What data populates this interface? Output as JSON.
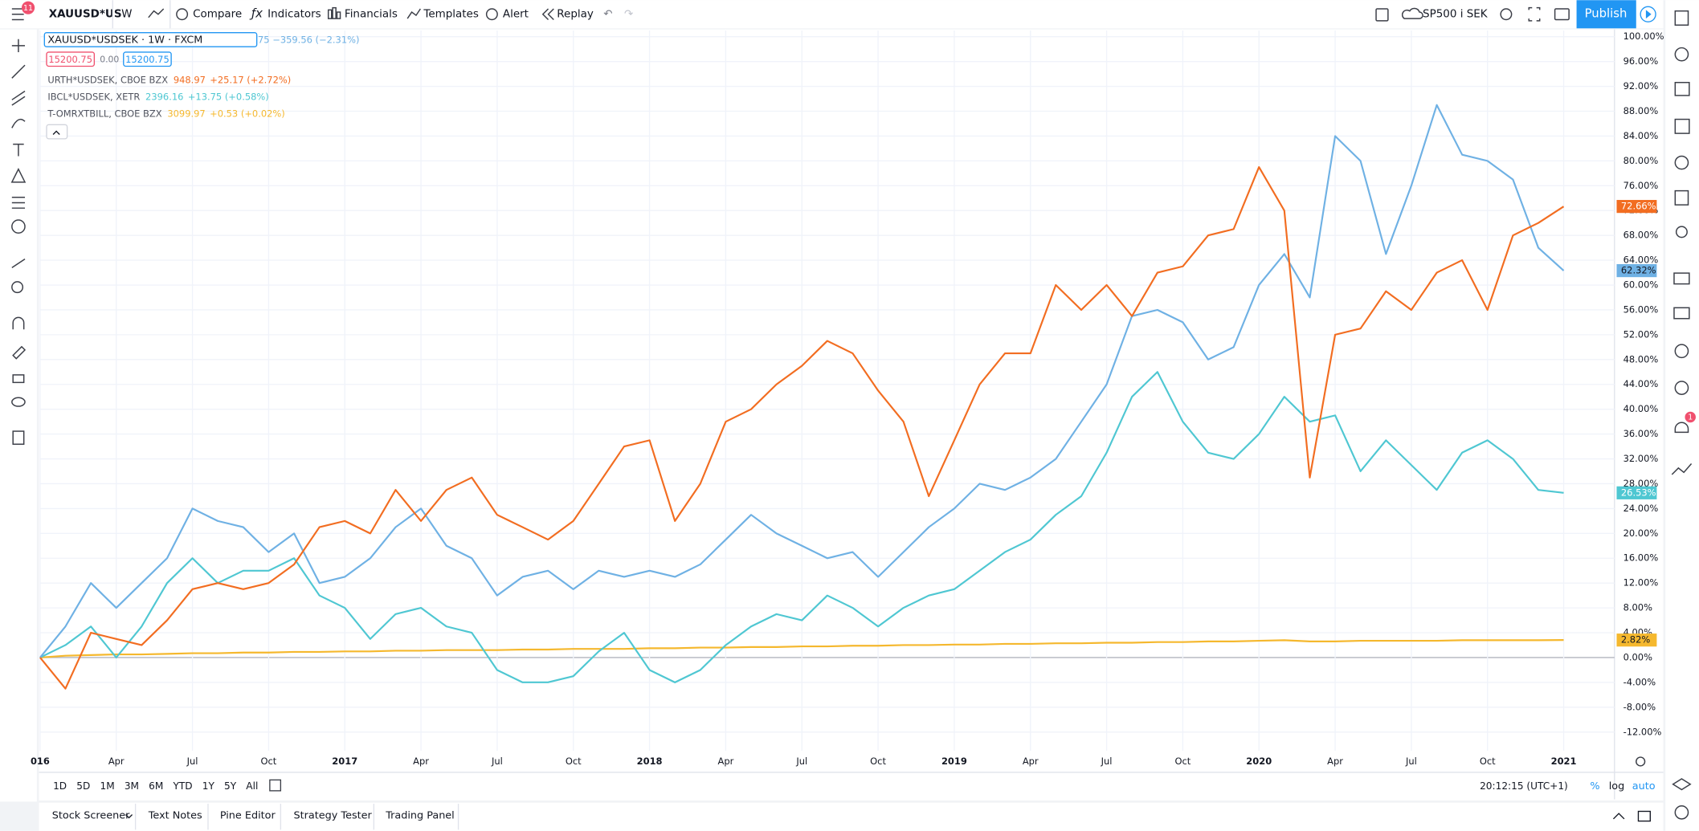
{
  "toolbar": {
    "symbol": "XAUUSD*US",
    "interval": "W",
    "badge": "11",
    "buttons": [
      "Compare",
      "Indicators",
      "Financials",
      "Templates",
      "Alert",
      "Replay"
    ],
    "layout": "SP500 i SEK",
    "publish": "Publish"
  },
  "chart_data": {
    "type": "line",
    "x": [
      "2016-01",
      "2016-02",
      "2016-03",
      "2016-04",
      "2016-05",
      "2016-06",
      "2016-07",
      "2016-08",
      "2016-09",
      "2016-10",
      "2016-11",
      "2016-12",
      "2017-01",
      "2017-02",
      "2017-03",
      "2017-04",
      "2017-05",
      "2017-06",
      "2017-07",
      "2017-08",
      "2017-09",
      "2017-10",
      "2017-11",
      "2017-12",
      "2018-01",
      "2018-02",
      "2018-03",
      "2018-04",
      "2018-05",
      "2018-06",
      "2018-07",
      "2018-08",
      "2018-09",
      "2018-10",
      "2018-11",
      "2018-12",
      "2019-01",
      "2019-02",
      "2019-03",
      "2019-04",
      "2019-05",
      "2019-06",
      "2019-07",
      "2019-08",
      "2019-09",
      "2019-10",
      "2019-11",
      "2019-12",
      "2020-01",
      "2020-02",
      "2020-03",
      "2020-04",
      "2020-05",
      "2020-06",
      "2020-07",
      "2020-08",
      "2020-09",
      "2020-10",
      "2020-11",
      "2020-12",
      "2021-01"
    ],
    "xlim": [
      "2016-01",
      "2021-03"
    ],
    "xticks": [
      {
        "value": "2016-01",
        "label": "016"
      },
      {
        "value": "2016-04",
        "label": "Apr"
      },
      {
        "value": "2016-07",
        "label": "Jul"
      },
      {
        "value": "2016-10",
        "label": "Oct"
      },
      {
        "value": "2017-01",
        "label": "2017"
      },
      {
        "value": "2017-04",
        "label": "Apr"
      },
      {
        "value": "2017-07",
        "label": "Jul"
      },
      {
        "value": "2017-10",
        "label": "Oct"
      },
      {
        "value": "2018-01",
        "label": "2018"
      },
      {
        "value": "2018-04",
        "label": "Apr"
      },
      {
        "value": "2018-07",
        "label": "Jul"
      },
      {
        "value": "2018-10",
        "label": "Oct"
      },
      {
        "value": "2019-01",
        "label": "2019"
      },
      {
        "value": "2019-04",
        "label": "Apr"
      },
      {
        "value": "2019-07",
        "label": "Jul"
      },
      {
        "value": "2019-10",
        "label": "Oct"
      },
      {
        "value": "2020-01",
        "label": "2020"
      },
      {
        "value": "2020-04",
        "label": "Apr"
      },
      {
        "value": "2020-07",
        "label": "Jul"
      },
      {
        "value": "2020-10",
        "label": "Oct"
      },
      {
        "value": "2021-01",
        "label": "2021"
      }
    ],
    "ylim": [
      -15,
      101
    ],
    "yticks": [
      {
        "value": -12,
        "label": "-12.00%"
      },
      {
        "value": -8,
        "label": "-8.00%"
      },
      {
        "value": -4,
        "label": "-4.00%"
      },
      {
        "value": 0,
        "label": "0.00%"
      },
      {
        "value": 4,
        "label": "4.00%"
      },
      {
        "value": 8,
        "label": "8.00%"
      },
      {
        "value": 12,
        "label": "12.00%"
      },
      {
        "value": 16,
        "label": "16.00%"
      },
      {
        "value": 20,
        "label": "20.00%"
      },
      {
        "value": 24,
        "label": "24.00%"
      },
      {
        "value": 28,
        "label": "28.00%"
      },
      {
        "value": 32,
        "label": "32.00%"
      },
      {
        "value": 36,
        "label": "36.00%"
      },
      {
        "value": 40,
        "label": "40.00%"
      },
      {
        "value": 44,
        "label": "44.00%"
      },
      {
        "value": 48,
        "label": "48.00%"
      },
      {
        "value": 52,
        "label": "52.00%"
      },
      {
        "value": 56,
        "label": "56.00%"
      },
      {
        "value": 60,
        "label": "60.00%"
      },
      {
        "value": 64,
        "label": "64.00%"
      },
      {
        "value": 68,
        "label": "68.00%"
      },
      {
        "value": 72,
        "label": "72.00%"
      },
      {
        "value": 76,
        "label": "76.00%"
      },
      {
        "value": 80,
        "label": "80.00%"
      },
      {
        "value": 84,
        "label": "84.00%"
      },
      {
        "value": 88,
        "label": "88.00%"
      },
      {
        "value": 92,
        "label": "92.00%"
      },
      {
        "value": 96,
        "label": "96.00%"
      },
      {
        "value": 100,
        "label": "100.00%"
      }
    ],
    "grid": true,
    "series": [
      {
        "name": "XAUUSD*USDSEK · 1W · FXCM",
        "color": "#6fb1e4",
        "change": "75 −359.56 (−2.31%)",
        "bid": "15200.75",
        "spread": "0.00",
        "ask": "15200.75",
        "values": [
          0,
          5,
          12,
          8,
          12,
          16,
          24,
          22,
          21,
          17,
          20,
          12,
          13,
          16,
          21,
          24,
          18,
          16,
          10,
          13,
          14,
          11,
          14,
          13,
          14,
          13,
          15,
          19,
          23,
          20,
          18,
          16,
          17,
          13,
          17,
          21,
          24,
          28,
          27,
          29,
          32,
          38,
          44,
          55,
          56,
          54,
          48,
          50,
          60,
          65,
          58,
          84,
          80,
          65,
          76,
          89,
          81,
          80,
          77,
          66,
          62.32
        ],
        "value_labels": [
          null,
          null,
          null,
          null,
          null,
          null,
          null,
          null,
          null,
          null,
          null,
          null,
          null,
          null,
          null,
          null,
          null,
          null,
          null,
          null,
          null,
          null,
          null,
          null,
          null,
          null,
          null,
          null,
          null,
          null,
          null,
          null,
          null,
          null,
          null,
          null,
          null,
          null,
          null,
          null,
          null,
          null,
          null,
          null,
          null,
          null,
          null,
          null,
          null,
          null,
          null,
          null,
          null,
          null,
          null,
          null,
          null,
          null,
          null,
          null,
          "62.32%"
        ]
      },
      {
        "name": "URTH*USDSEK, CBOE BZX",
        "color": "#f26d21",
        "last": "948.97",
        "change": "+25.17 (+2.72%)",
        "values": [
          0,
          -5,
          4,
          3,
          2,
          6,
          11,
          12,
          11,
          12,
          15,
          21,
          22,
          20,
          27,
          22,
          27,
          29,
          23,
          21,
          19,
          22,
          28,
          34,
          35,
          22,
          28,
          38,
          40,
          44,
          47,
          51,
          49,
          43,
          38,
          26,
          35,
          44,
          49,
          49,
          60,
          56,
          60,
          55,
          62,
          63,
          68,
          69,
          79,
          72,
          29,
          52,
          53,
          59,
          56,
          62,
          64,
          56,
          68,
          70,
          72.66
        ],
        "value_labels": [
          null,
          null,
          null,
          null,
          null,
          null,
          null,
          null,
          null,
          null,
          null,
          null,
          null,
          null,
          null,
          null,
          null,
          null,
          null,
          null,
          null,
          null,
          null,
          null,
          null,
          null,
          null,
          null,
          null,
          null,
          null,
          null,
          null,
          null,
          null,
          null,
          null,
          null,
          null,
          null,
          null,
          null,
          null,
          null,
          null,
          null,
          null,
          null,
          null,
          null,
          null,
          null,
          null,
          null,
          null,
          null,
          null,
          null,
          null,
          null,
          "72.66%"
        ]
      },
      {
        "name": "IBCL*USDSEK, XETR",
        "color": "#4fc7d2",
        "last": "2396.16",
        "change": "+13.75 (+0.58%)",
        "values": [
          0,
          2,
          5,
          0,
          5,
          12,
          16,
          12,
          14,
          14,
          16,
          10,
          8,
          3,
          7,
          8,
          5,
          4,
          -2,
          -4,
          -4,
          -3,
          1,
          4,
          -2,
          -4,
          -2,
          2,
          5,
          7,
          6,
          10,
          8,
          5,
          8,
          10,
          11,
          14,
          17,
          19,
          23,
          26,
          33,
          42,
          46,
          38,
          33,
          32,
          36,
          42,
          38,
          39,
          30,
          35,
          31,
          27,
          33,
          35,
          32,
          27,
          26.53
        ],
        "value_labels": [
          null,
          null,
          null,
          null,
          null,
          null,
          null,
          null,
          null,
          null,
          null,
          null,
          null,
          null,
          null,
          null,
          null,
          null,
          null,
          null,
          null,
          null,
          null,
          null,
          null,
          null,
          null,
          null,
          null,
          null,
          null,
          null,
          null,
          null,
          null,
          null,
          null,
          null,
          null,
          null,
          null,
          null,
          null,
          null,
          null,
          null,
          null,
          null,
          null,
          null,
          null,
          null,
          null,
          null,
          null,
          null,
          null,
          null,
          null,
          null,
          "26.53%"
        ]
      },
      {
        "name": "T-OMRXTBILL, CBOE BZX",
        "color": "#f5b82e",
        "last": "3099.97",
        "change": "+0.53 (+0.02%)",
        "values": [
          0,
          0.3,
          0.4,
          0.5,
          0.5,
          0.6,
          0.7,
          0.7,
          0.8,
          0.8,
          0.9,
          0.9,
          1.0,
          1.0,
          1.1,
          1.1,
          1.2,
          1.2,
          1.2,
          1.3,
          1.3,
          1.4,
          1.4,
          1.4,
          1.5,
          1.5,
          1.6,
          1.6,
          1.7,
          1.7,
          1.8,
          1.8,
          1.9,
          1.9,
          2.0,
          2.0,
          2.1,
          2.1,
          2.2,
          2.2,
          2.3,
          2.3,
          2.4,
          2.4,
          2.5,
          2.5,
          2.6,
          2.6,
          2.7,
          2.8,
          2.6,
          2.6,
          2.7,
          2.7,
          2.7,
          2.7,
          2.8,
          2.8,
          2.8,
          2.8,
          2.82
        ],
        "value_labels": [
          null,
          null,
          null,
          null,
          null,
          null,
          null,
          null,
          null,
          null,
          null,
          null,
          null,
          null,
          null,
          null,
          null,
          null,
          null,
          null,
          null,
          null,
          null,
          null,
          null,
          null,
          null,
          null,
          null,
          null,
          null,
          null,
          null,
          null,
          null,
          null,
          null,
          null,
          null,
          null,
          null,
          null,
          null,
          null,
          null,
          null,
          null,
          null,
          null,
          null,
          null,
          null,
          null,
          null,
          null,
          null,
          null,
          null,
          null,
          null,
          "2.82%"
        ]
      }
    ]
  },
  "range_buttons": [
    "1D",
    "5D",
    "1M",
    "3M",
    "6M",
    "YTD",
    "1Y",
    "5Y",
    "All"
  ],
  "clock": "20:12:15 (UTC+1)",
  "scale_options": [
    "%",
    "log",
    "auto"
  ],
  "bottom_tabs": [
    "Stock Screener",
    "Text Notes",
    "Pine Editor",
    "Strategy Tester",
    "Trading Panel"
  ],
  "alerts_badge": "1"
}
